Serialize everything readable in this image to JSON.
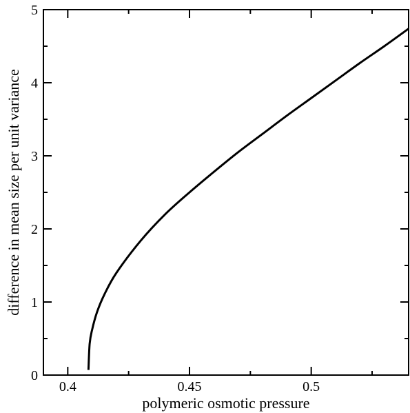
{
  "chart_data": {
    "type": "line",
    "title": "",
    "xlabel": "polymeric osmotic pressure",
    "ylabel": "difference in mean size per unit variance",
    "xlim": [
      0.39,
      0.54
    ],
    "ylim": [
      0,
      5
    ],
    "x_ticks": [
      0.4,
      0.45,
      0.5
    ],
    "x_tick_labels": [
      "0.4",
      "0.45",
      "0.5"
    ],
    "x_minor_ticks": [
      0.425,
      0.475,
      0.525
    ],
    "y_ticks": [
      0,
      1,
      2,
      3,
      4,
      5
    ],
    "y_tick_labels": [
      "0",
      "1",
      "2",
      "3",
      "4",
      "5"
    ],
    "y_minor_ticks": [
      0.5,
      1.5,
      2.5,
      3.5,
      4.5
    ],
    "grid": false,
    "legend": "none",
    "colors": {
      "line": "#000000",
      "axes": "#000000",
      "background": "#ffffff"
    },
    "series": [
      {
        "x": [
          0.4085,
          0.409,
          0.41,
          0.412,
          0.415,
          0.42,
          0.43,
          0.44,
          0.45,
          0.46,
          0.47,
          0.48,
          0.49,
          0.5,
          0.51,
          0.52,
          0.53,
          0.54
        ],
        "y": [
          0.07,
          0.43,
          0.62,
          0.86,
          1.1,
          1.4,
          1.84,
          2.2,
          2.5,
          2.78,
          3.05,
          3.3,
          3.55,
          3.79,
          4.03,
          4.27,
          4.5,
          4.74
        ]
      }
    ]
  }
}
